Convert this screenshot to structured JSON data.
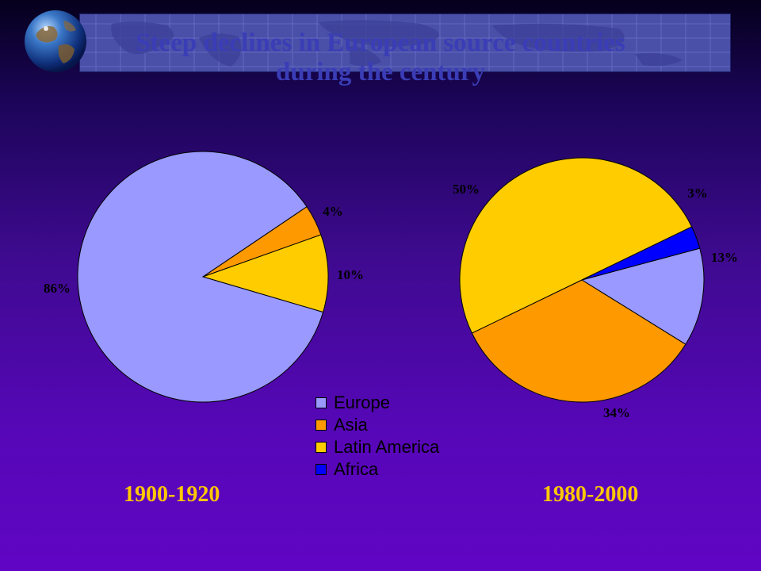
{
  "slide": {
    "title_line1": "Steep declines in European source countries",
    "title_line2": "during the century"
  },
  "colors": {
    "Europe": "#9999ff",
    "Asia": "#ff9900",
    "Latin America": "#ffcc00",
    "Africa": "#0000ff",
    "title": "#3a3db6",
    "period_label": "#ffc800"
  },
  "chart_data": [
    {
      "type": "pie",
      "period_label": "1900-1920",
      "slices": [
        {
          "category": "Europe",
          "value": 86,
          "label": "86%"
        },
        {
          "category": "Asia",
          "value": 4,
          "label": "4%"
        },
        {
          "category": "Latin America",
          "value": 10,
          "label": "10%"
        },
        {
          "category": "Africa",
          "value": 0,
          "label": ""
        }
      ],
      "legend": [
        "Europe",
        "Asia",
        "Latin America",
        "Africa"
      ]
    },
    {
      "type": "pie",
      "period_label": "1980-2000",
      "slices": [
        {
          "category": "Europe",
          "value": 13,
          "label": "13%"
        },
        {
          "category": "Asia",
          "value": 34,
          "label": "34%"
        },
        {
          "category": "Latin America",
          "value": 50,
          "label": "50%"
        },
        {
          "category": "Africa",
          "value": 3,
          "label": "3%"
        }
      ],
      "legend": [
        "Europe",
        "Asia",
        "Latin America",
        "Africa"
      ]
    }
  ],
  "legend": {
    "items": [
      "Europe",
      "Asia",
      "Latin America",
      "Africa"
    ]
  }
}
